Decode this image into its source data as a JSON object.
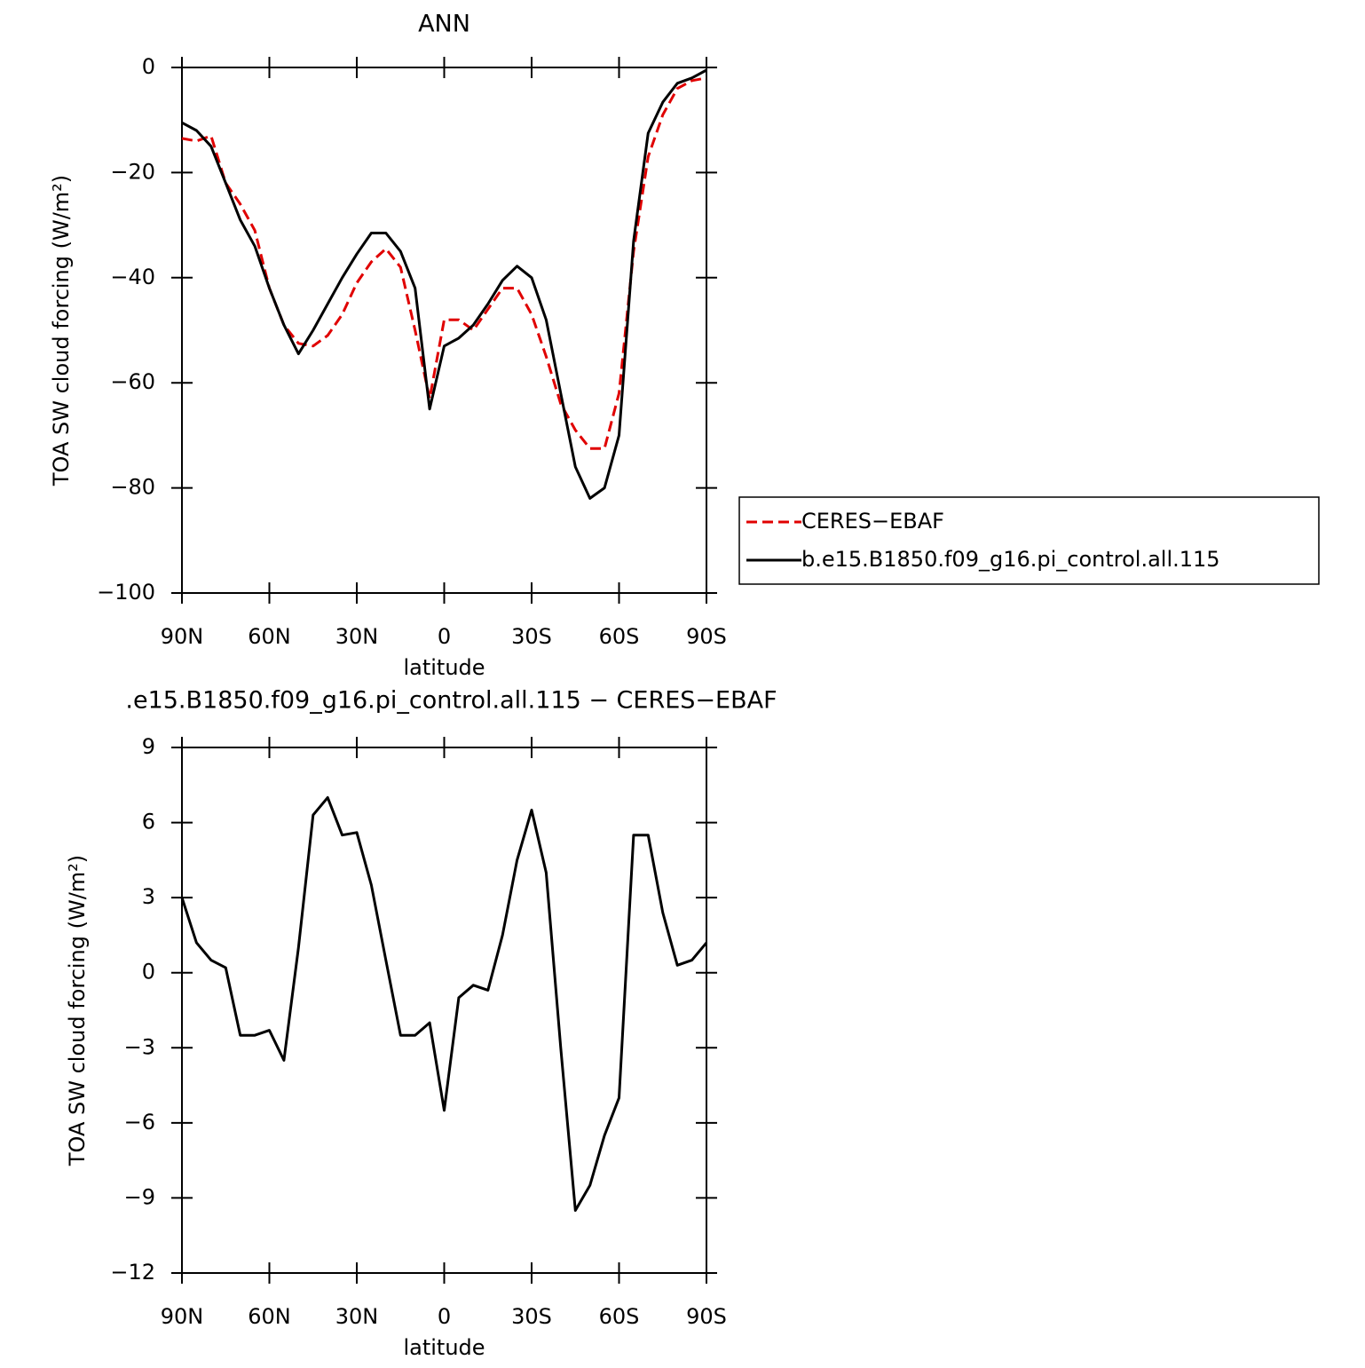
{
  "chart_data": [
    {
      "type": "line",
      "title": "ANN",
      "x_label": "latitude",
      "y_label": "TOA SW cloud forcing (W/m²)",
      "x": [
        90,
        85,
        80,
        75,
        70,
        65,
        60,
        55,
        50,
        45,
        40,
        35,
        30,
        25,
        20,
        15,
        10,
        5,
        0,
        -5,
        -10,
        -15,
        -20,
        -25,
        -30,
        -35,
        -40,
        -45,
        -50,
        -55,
        -60,
        -65,
        -70,
        -75,
        -80,
        -85,
        -90
      ],
      "xlim": [
        90,
        -90
      ],
      "xticks": [
        {
          "value": 90,
          "label": "90N"
        },
        {
          "value": 60,
          "label": "60N"
        },
        {
          "value": 30,
          "label": "30N"
        },
        0,
        {
          "value": -30,
          "label": "30S"
        },
        {
          "value": -60,
          "label": "60S"
        },
        {
          "value": -90,
          "label": "90S"
        }
      ],
      "ylim": [
        -100,
        0
      ],
      "yticks": [
        {
          "value": -100,
          "label": "−100"
        },
        {
          "value": -80,
          "label": "−80"
        },
        {
          "value": -60,
          "label": "−60"
        },
        {
          "value": -40,
          "label": "−40"
        },
        {
          "value": -20,
          "label": "−20"
        },
        0
      ],
      "legend": "right",
      "series": [
        {
          "name": "CERES−EBAF",
          "color": "#e00000",
          "dashed": true,
          "values": [
            -13.5,
            -14,
            -13,
            -22,
            -26,
            -31,
            -42,
            -49,
            -52.5,
            -53,
            -51,
            -47,
            -41,
            -37,
            -34.5,
            -38,
            -50,
            -63,
            -48,
            -48,
            -50,
            -46,
            -42,
            -42,
            -47,
            -55,
            -64,
            -69,
            -72.5,
            -72.5,
            -62,
            -35,
            -17,
            -9,
            -4,
            -2.5,
            -2
          ]
        },
        {
          "name": "b.e15.B1850.f09_g16.pi_control.all.115",
          "color": "#000000",
          "dashed": false,
          "values": [
            -10.5,
            -12,
            -15,
            -22,
            -29,
            -34,
            -42,
            -49,
            -54.5,
            -50,
            -45,
            -40,
            -35.5,
            -31.5,
            -31.5,
            -35,
            -42,
            -65,
            -53,
            -51.5,
            -49,
            -45,
            -40.5,
            -37.8,
            -40,
            -48,
            -62,
            -76,
            -82,
            -80,
            -70,
            -33,
            -12.5,
            -6.6,
            -3,
            -2,
            -0.5
          ]
        }
      ]
    },
    {
      "type": "line",
      "title": ".e15.B1850.f09_g16.pi_control.all.115 − CERES−EBAF",
      "x_label": "latitude",
      "y_label": "TOA SW cloud forcing (W/m²)",
      "x": [
        90,
        85,
        80,
        75,
        70,
        65,
        60,
        55,
        50,
        45,
        40,
        35,
        30,
        25,
        20,
        15,
        10,
        5,
        0,
        -5,
        -10,
        -15,
        -20,
        -25,
        -30,
        -35,
        -40,
        -45,
        -50,
        -55,
        -60,
        -65,
        -70,
        -75,
        -80,
        -85,
        -90
      ],
      "xlim": [
        90,
        -90
      ],
      "xticks": [
        {
          "value": 90,
          "label": "90N"
        },
        {
          "value": 60,
          "label": "60N"
        },
        {
          "value": 30,
          "label": "30N"
        },
        0,
        {
          "value": -30,
          "label": "30S"
        },
        {
          "value": -60,
          "label": "60S"
        },
        {
          "value": -90,
          "label": "90S"
        }
      ],
      "ylim": [
        -12,
        9
      ],
      "yticks": [
        {
          "value": -12,
          "label": "−12"
        },
        {
          "value": -9,
          "label": "−9"
        },
        {
          "value": -6,
          "label": "−6"
        },
        {
          "value": -3,
          "label": "−3"
        },
        0,
        3,
        6,
        9
      ],
      "series": [
        {
          "color": "#000000",
          "dashed": false,
          "values": [
            3,
            1.2,
            0.5,
            0.2,
            -2.5,
            -2.5,
            -2.3,
            -3.5,
            1,
            6.3,
            7,
            5.5,
            5.6,
            3.5,
            0.5,
            -2.5,
            -2.5,
            -2,
            -5.5,
            -1,
            -0.5,
            -0.7,
            1.5,
            4.5,
            6.5,
            4,
            -3,
            -9.5,
            -8.5,
            -6.5,
            -5,
            5.5,
            5.5,
            2.4,
            0.3,
            0.5,
            1.2
          ]
        }
      ]
    }
  ]
}
